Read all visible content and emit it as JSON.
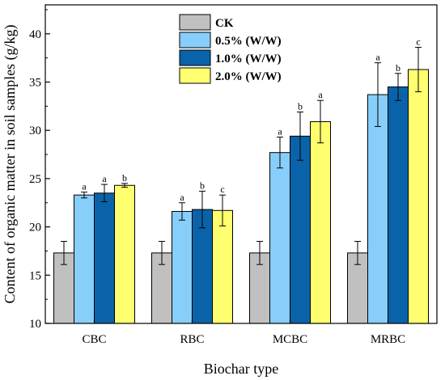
{
  "chart_data": {
    "type": "bar",
    "xlabel": "Biochar type",
    "ylabel": "Content of organic matter in soil samples (g/kg)",
    "ylim": [
      10,
      43
    ],
    "yticks": [
      10,
      15,
      20,
      25,
      30,
      35,
      40
    ],
    "categories": [
      "CBC",
      "RBC",
      "MCBC",
      "MRBC"
    ],
    "legend_position": "top-center",
    "grid": false,
    "series": [
      {
        "name": "CK",
        "color": "#c0c0c0",
        "values": [
          17.3,
          17.3,
          17.3,
          17.3
        ],
        "errors": [
          1.2,
          1.2,
          1.2,
          1.2
        ],
        "labels": [
          "",
          "",
          "",
          ""
        ]
      },
      {
        "name": "0.5% (W/W)",
        "color": "#87cefa",
        "values": [
          23.3,
          21.6,
          27.7,
          33.7
        ],
        "errors": [
          0.3,
          0.9,
          1.6,
          3.3
        ],
        "labels": [
          "a",
          "a",
          "a",
          "a"
        ]
      },
      {
        "name": "1.0% (W/W)",
        "color": "#0a63a8",
        "values": [
          23.5,
          21.8,
          29.4,
          34.5
        ],
        "errors": [
          0.9,
          1.9,
          2.5,
          1.4
        ],
        "labels": [
          "a",
          "b",
          "b",
          "b"
        ]
      },
      {
        "name": "2.0% (W/W)",
        "color": "#ffff70",
        "values": [
          24.3,
          21.7,
          30.9,
          36.3
        ],
        "errors": [
          0.2,
          1.6,
          2.2,
          2.3
        ],
        "labels": [
          "b",
          "c",
          "a",
          "c"
        ]
      }
    ]
  }
}
